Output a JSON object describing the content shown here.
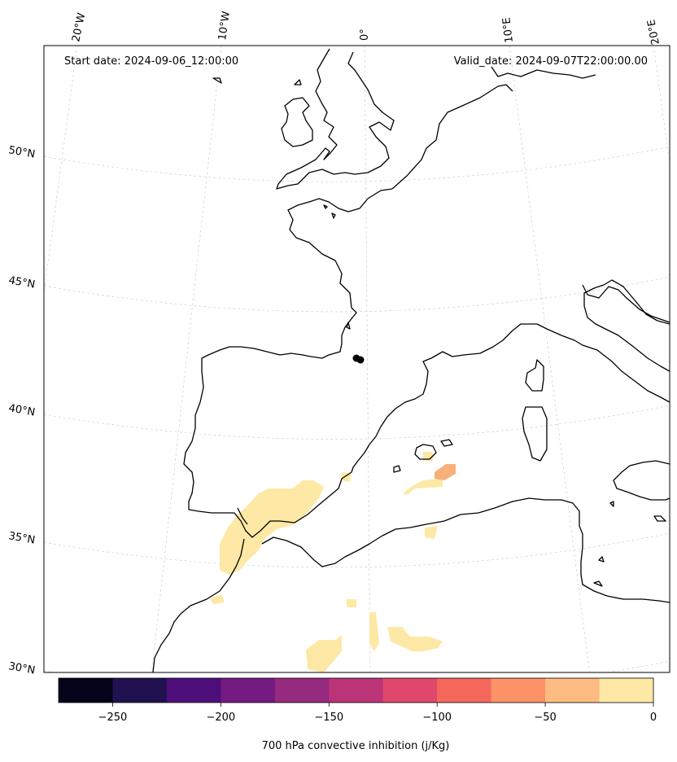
{
  "header": {
    "start_date": "Start date: 2024-09-06_12:00:00",
    "valid_date": "Valid_date: 2024-09-07T22:00:00.00"
  },
  "longitude_labels": [
    "20°W",
    "10°W",
    "0°",
    "10°E",
    "20°E"
  ],
  "latitude_labels": [
    "50°N",
    "45°N",
    "40°N",
    "35°N",
    "30°N"
  ],
  "colorbar": {
    "label": "700 hPa convective inhibition (j/Kg)",
    "ticks": [
      "−250",
      "−200",
      "−150",
      "−100",
      "−50",
      "0"
    ],
    "colors": [
      "#04041b",
      "#221150",
      "#4f0f7a",
      "#731b81",
      "#952a7f",
      "#bc3478",
      "#df476b",
      "#f4685c",
      "#fd9268",
      "#febc82",
      "#fde8a5"
    ]
  },
  "cin_fill_color": "#fde8a5",
  "cin_strong_color": "#f7b07a"
}
